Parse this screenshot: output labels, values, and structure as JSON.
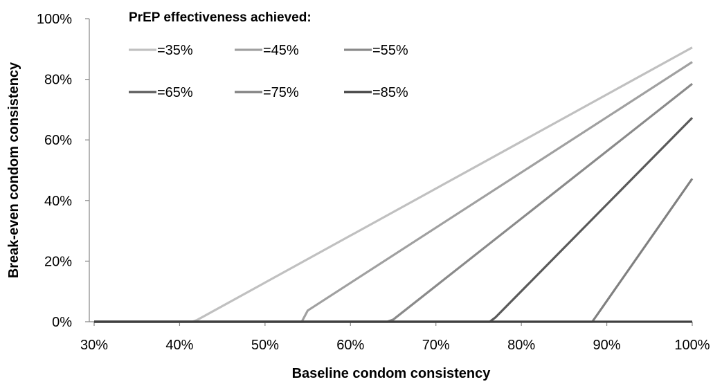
{
  "chart_data": {
    "type": "line",
    "title": "",
    "xlabel": "Baseline condom consistency",
    "ylabel": "Break-even condom consistency",
    "xlim": [
      30,
      100
    ],
    "ylim": [
      0,
      100
    ],
    "x_ticks": [
      "30%",
      "40%",
      "50%",
      "60%",
      "70%",
      "80%",
      "90%",
      "100%"
    ],
    "y_ticks": [
      "0%",
      "20%",
      "40%",
      "60%",
      "80%",
      "100%"
    ],
    "legend_title": "PrEP effectiveness achieved:",
    "legend_position": "top-left",
    "grid": false,
    "series": [
      {
        "name": "=35%",
        "color": "#c0c0c0",
        "points": [
          [
            30,
            0
          ],
          [
            41.5,
            0
          ],
          [
            42,
            0.5
          ],
          [
            100,
            90.5
          ]
        ]
      },
      {
        "name": "=45%",
        "color": "#a0a0a0",
        "points": [
          [
            30,
            0
          ],
          [
            54.3,
            0
          ],
          [
            55,
            3.7
          ],
          [
            100,
            85.7
          ]
        ]
      },
      {
        "name": "=55%",
        "color": "#8a8a8a",
        "points": [
          [
            30,
            0
          ],
          [
            64.3,
            0
          ],
          [
            65,
            0.7
          ],
          [
            100,
            78.5
          ]
        ]
      },
      {
        "name": "=65%",
        "color": "#5a5a5a",
        "points": [
          [
            30,
            0
          ],
          [
            76.3,
            0
          ],
          [
            77,
            1.5
          ],
          [
            100,
            67.3
          ]
        ]
      },
      {
        "name": "=75%",
        "color": "#808080",
        "points": [
          [
            30,
            0
          ],
          [
            88.3,
            0
          ],
          [
            89,
            2.8
          ],
          [
            100,
            47.2
          ]
        ]
      },
      {
        "name": "=85%",
        "color": "#404040",
        "points": [
          [
            30,
            0
          ],
          [
            100,
            0
          ]
        ]
      }
    ]
  }
}
